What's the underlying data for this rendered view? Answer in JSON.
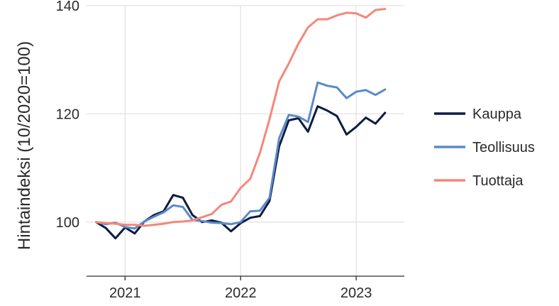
{
  "chart_data": {
    "type": "line",
    "ylabel": "Hintaindeksi (10/2020=100)",
    "xlabel": "",
    "ylim": [
      90,
      140
    ],
    "yticks": [
      100,
      120,
      140
    ],
    "xlim": [
      "2020-09",
      "2023-06"
    ],
    "xticks": [
      {
        "date": "2021-01",
        "label": "2021"
      },
      {
        "date": "2022-01",
        "label": "2022"
      },
      {
        "date": "2023-01",
        "label": "2023"
      }
    ],
    "x": [
      "2020-10",
      "2020-11",
      "2020-12",
      "2021-01",
      "2021-02",
      "2021-03",
      "2021-04",
      "2021-05",
      "2021-06",
      "2021-07",
      "2021-08",
      "2021-09",
      "2021-10",
      "2021-11",
      "2021-12",
      "2022-01",
      "2022-02",
      "2022-03",
      "2022-04",
      "2022-05",
      "2022-06",
      "2022-07",
      "2022-08",
      "2022-09",
      "2022-10",
      "2022-11",
      "2022-12",
      "2023-01",
      "2023-02",
      "2023-03",
      "2023-04"
    ],
    "series": [
      {
        "name": "Kauppa",
        "color": "#0e1c40",
        "values": [
          100,
          98.9,
          97.0,
          99.0,
          97.9,
          100.1,
          101.3,
          102.0,
          105.0,
          104.5,
          101.3,
          100.0,
          100.3,
          99.9,
          98.3,
          99.8,
          100.8,
          101.1,
          103.9,
          114.0,
          118.8,
          119.2,
          116.7,
          121.4,
          120.6,
          119.6,
          116.2,
          117.6,
          119.3,
          118.2,
          120.2
        ]
      },
      {
        "name": "Teollisuus",
        "color": "#5b8ac8",
        "values": [
          100,
          99.6,
          99.9,
          99.1,
          98.8,
          100.1,
          101.0,
          101.8,
          103.1,
          102.8,
          100.4,
          100.2,
          99.9,
          99.8,
          99.6,
          100.0,
          102.0,
          102.1,
          104.5,
          115.5,
          119.8,
          119.5,
          118.5,
          125.8,
          125.2,
          124.9,
          122.9,
          124.1,
          124.4,
          123.5,
          124.5
        ]
      },
      {
        "name": "Tuottaja",
        "color": "#f4877a",
        "values": [
          100,
          99.8,
          99.7,
          99.5,
          99.5,
          99.3,
          99.5,
          99.7,
          100.0,
          100.1,
          100.3,
          100.9,
          101.5,
          103.2,
          103.8,
          106.3,
          108.0,
          112.8,
          119.0,
          126.0,
          129.3,
          133.0,
          136.0,
          137.5,
          137.5,
          138.2,
          138.7,
          138.6,
          137.8,
          139.2,
          139.4
        ]
      }
    ],
    "legend": "right",
    "grid": true
  }
}
